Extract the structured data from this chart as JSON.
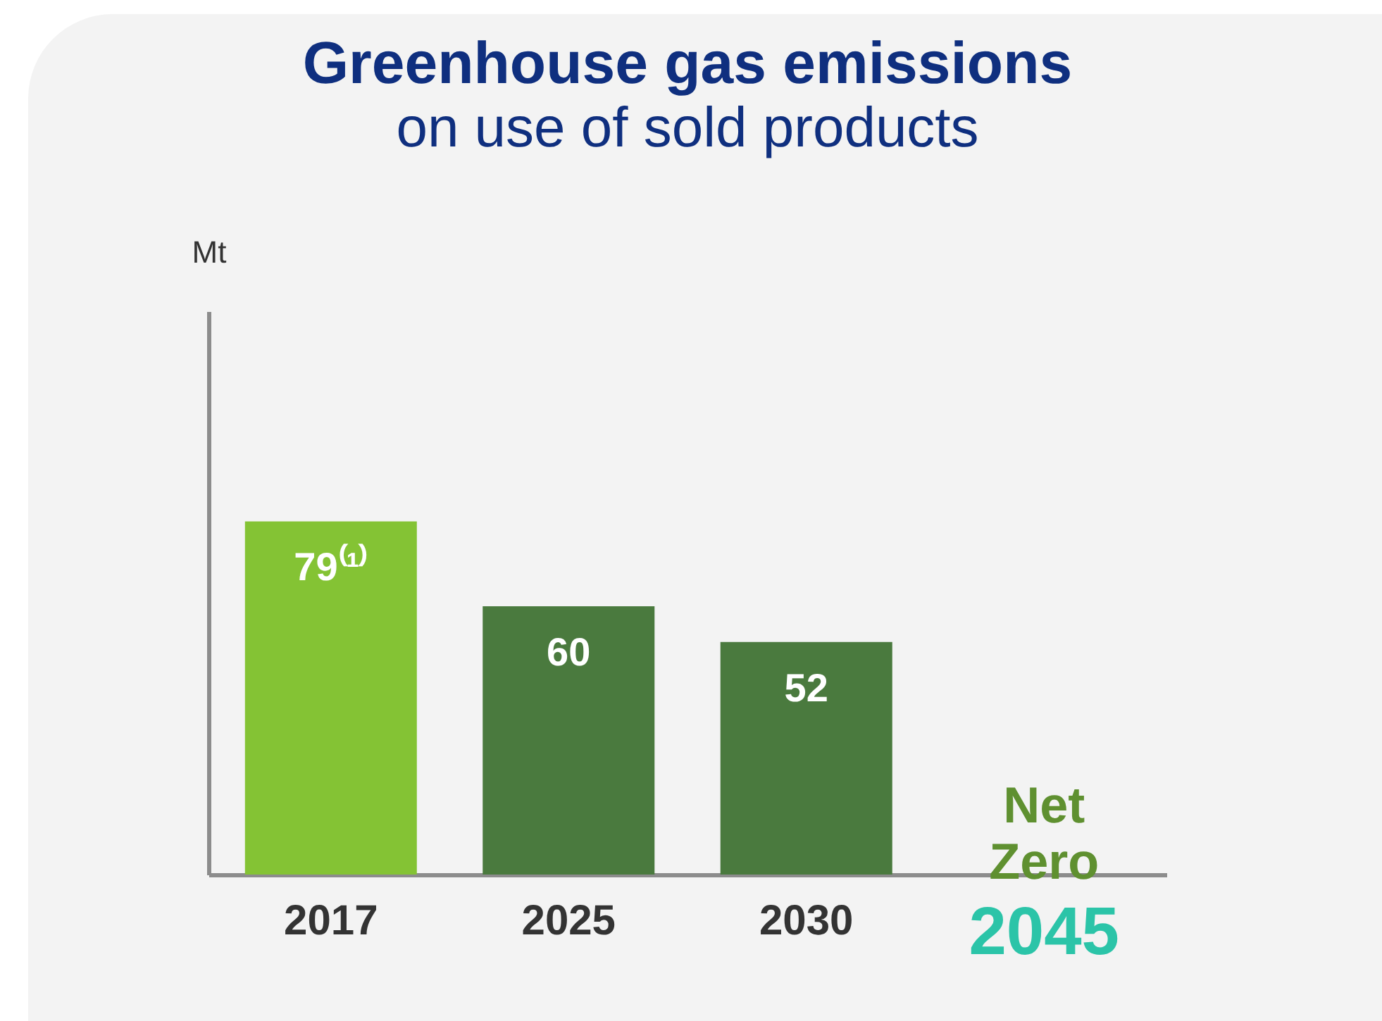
{
  "chart_data": {
    "type": "bar",
    "title": "Greenhouse gas emissions",
    "subtitle": "on use of sold products",
    "ylabel": "Mt",
    "categories": [
      "2017",
      "2025",
      "2030",
      "2045"
    ],
    "values": [
      79,
      60,
      52,
      0
    ],
    "colors": [
      "#84c334",
      "#4a7a3e",
      "#4a7a3e",
      "#4a7a3e"
    ],
    "value_labels": [
      "79⁽¹⁾",
      "60",
      "52",
      "Net Zero"
    ],
    "ylim": [
      0,
      126
    ],
    "tick_labels": "x",
    "grid": false
  }
}
